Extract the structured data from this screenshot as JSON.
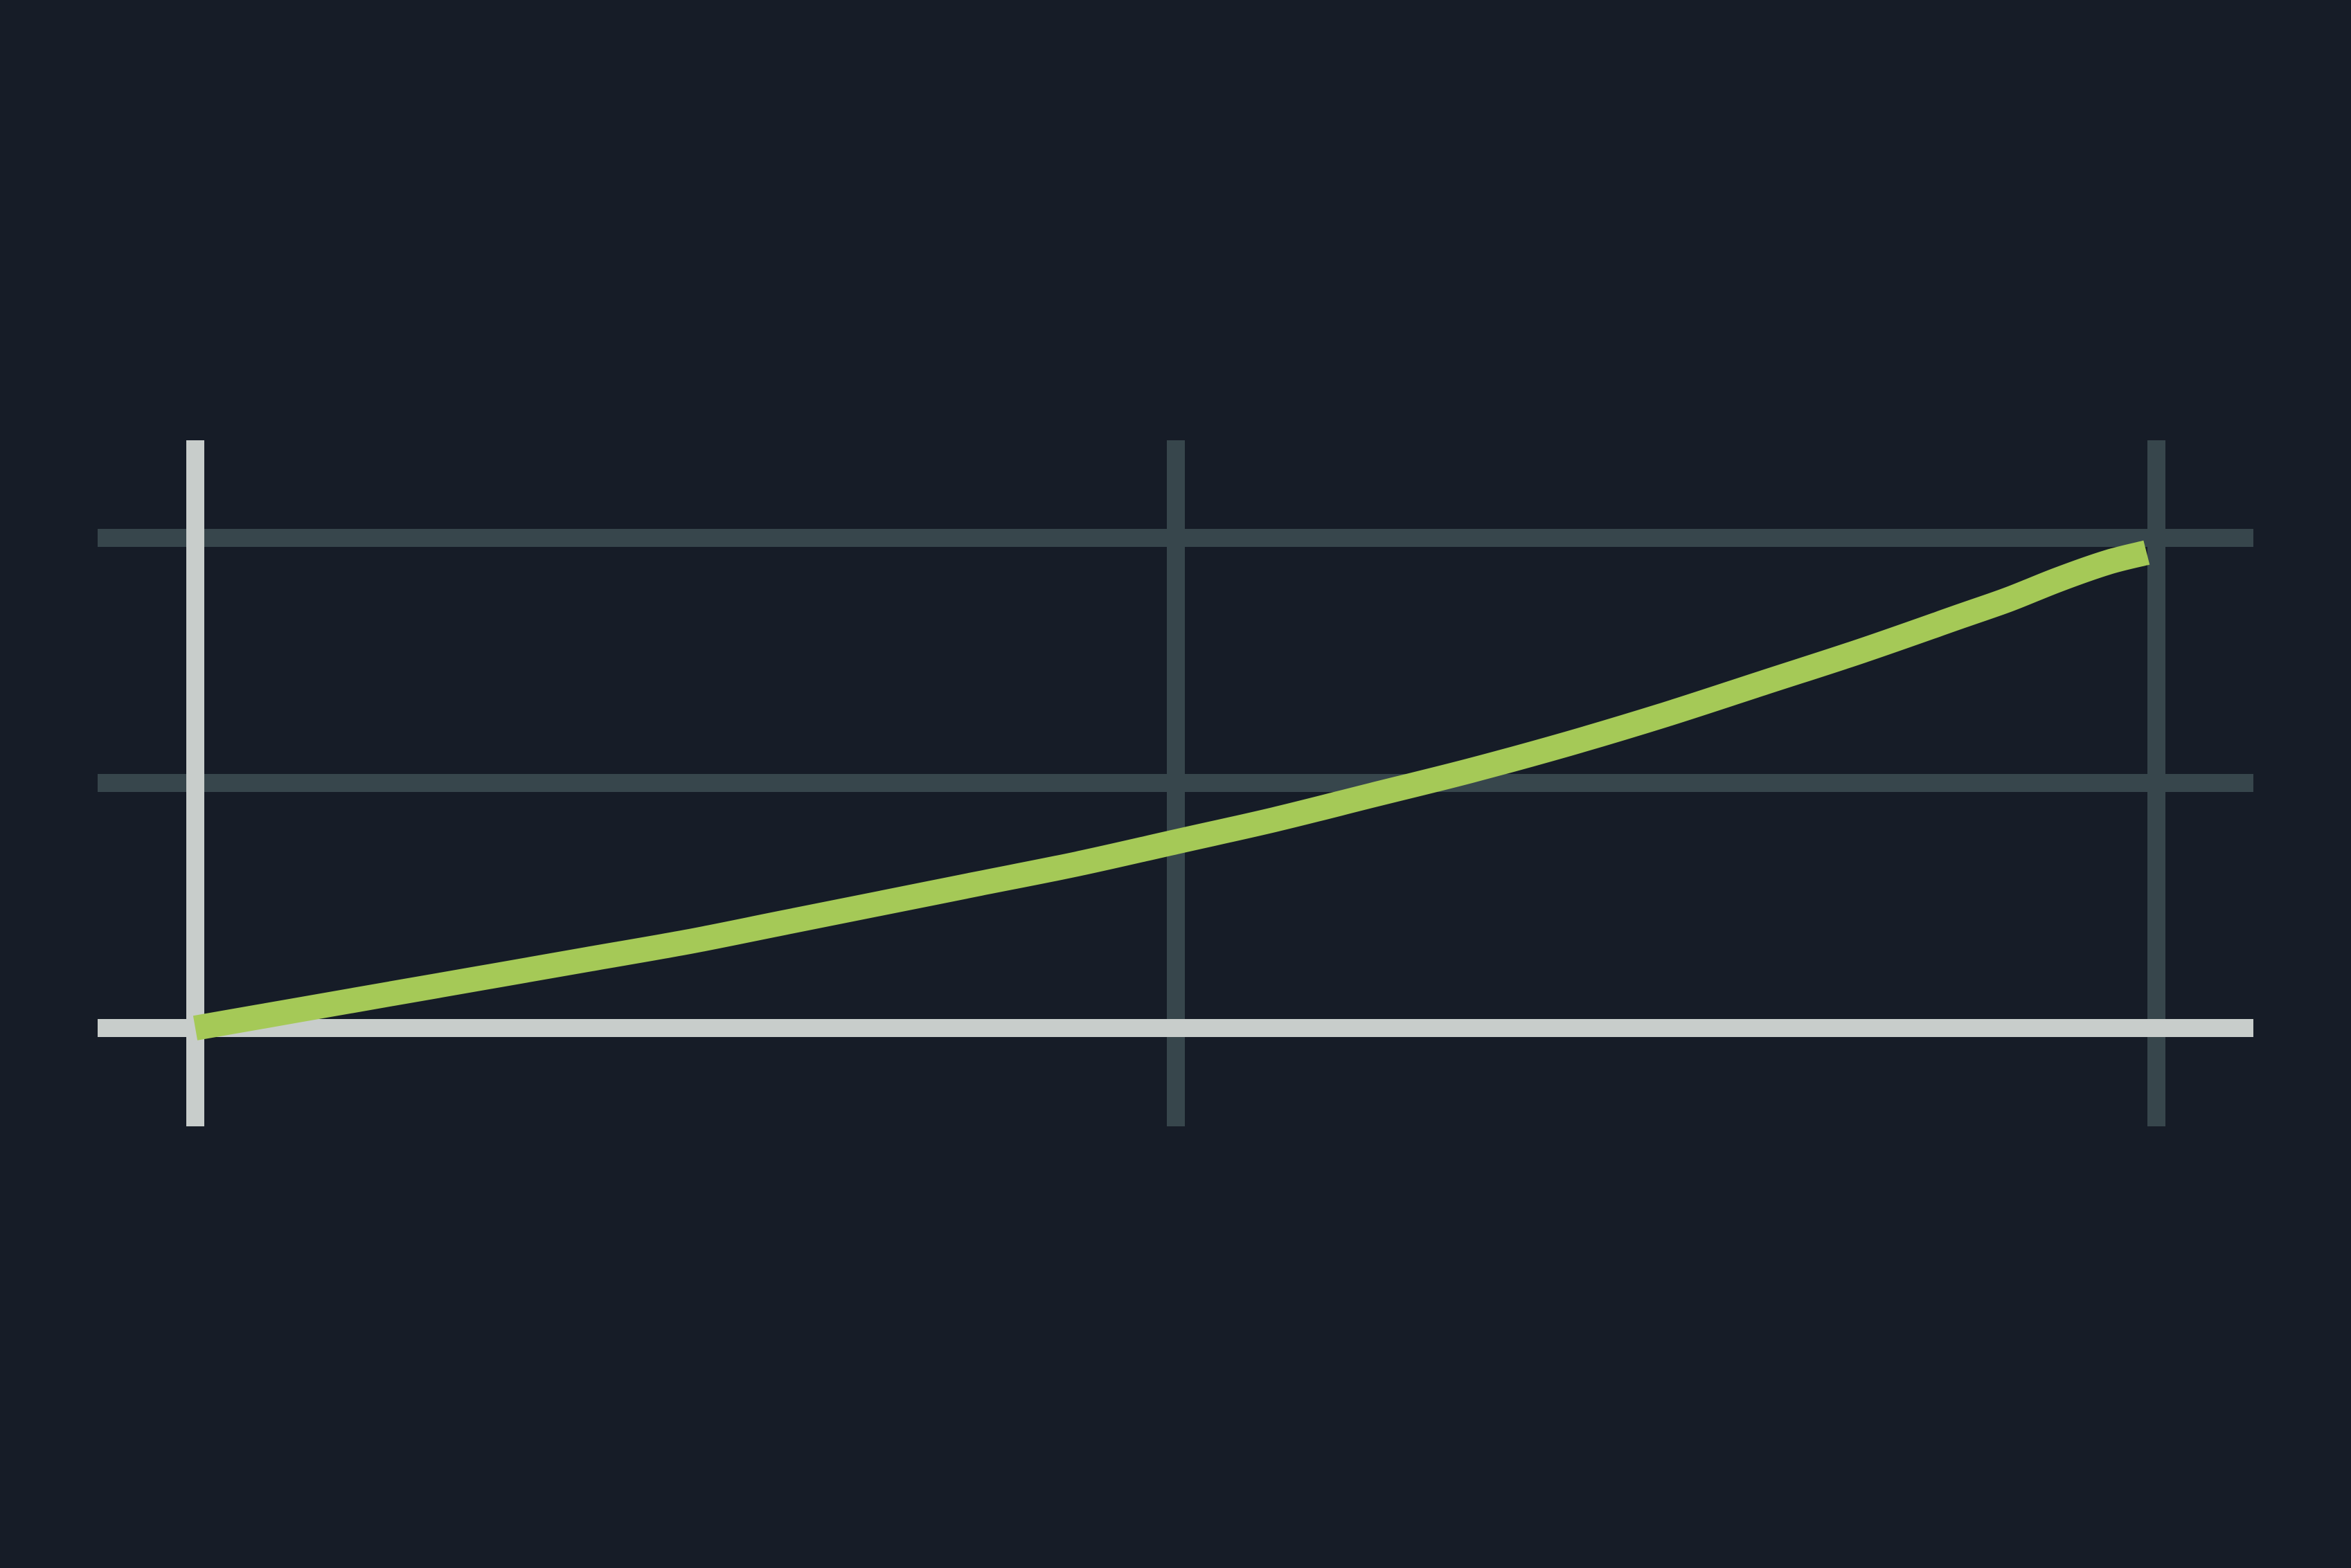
{
  "chart_data": {
    "type": "line",
    "title": "",
    "xlabel": "",
    "ylabel": "",
    "xlim": [
      0,
      2
    ],
    "ylim": [
      0,
      2
    ],
    "x_ticks": [
      0,
      1,
      2
    ],
    "y_ticks": [
      0,
      1,
      2
    ],
    "grid": true,
    "legend": "none",
    "series": [
      {
        "x": [
          0,
          0.1,
          0.2,
          0.3,
          0.4,
          0.5,
          0.6,
          0.7,
          0.8,
          0.9,
          1.0,
          1.1,
          1.2,
          1.3,
          1.4,
          1.5,
          1.6,
          1.7,
          1.8,
          1.85,
          1.9,
          1.95,
          1.99
        ],
        "y": [
          0,
          0.07,
          0.14,
          0.21,
          0.28,
          0.35,
          0.43,
          0.51,
          0.59,
          0.67,
          0.76,
          0.85,
          0.95,
          1.05,
          1.16,
          1.28,
          1.41,
          1.54,
          1.68,
          1.75,
          1.83,
          1.9,
          1.94
        ]
      }
    ]
  },
  "colors": {
    "background": "#161c27",
    "grid": "#37464c",
    "axis": "#c8cdcb",
    "line": "#a5c957"
  }
}
